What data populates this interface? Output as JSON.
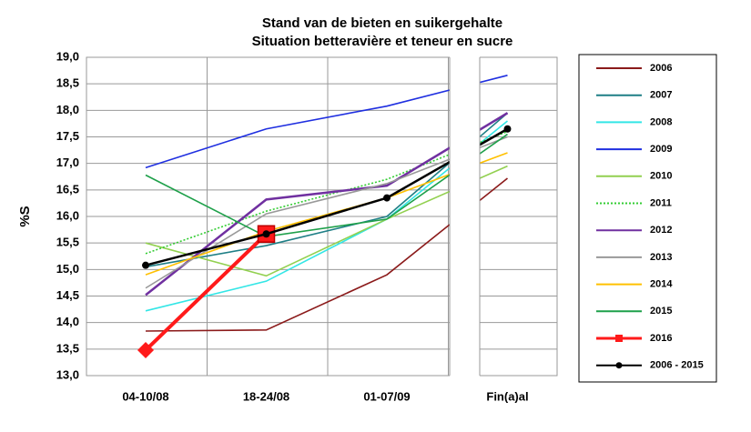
{
  "chart_data": {
    "type": "line",
    "title": "Stand van de bieten en suikergehalte",
    "subtitle": "Situation betteravière et teneur en sucre",
    "y_label": "%S",
    "categories": [
      "04-10/08",
      "18-24/08",
      "01-07/09",
      "Fin(a)al"
    ],
    "ylim": [
      13,
      19
    ],
    "yticks": [
      {
        "value": 13,
        "label": "13,0"
      },
      {
        "value": 13.5,
        "label": "13,5"
      },
      {
        "value": 14,
        "label": "14,0"
      },
      {
        "value": 14.5,
        "label": "14,5"
      },
      {
        "value": 15,
        "label": "15,0"
      },
      {
        "value": 15.5,
        "label": "15,5"
      },
      {
        "value": 16,
        "label": "16,0"
      },
      {
        "value": 16.5,
        "label": "16,5"
      },
      {
        "value": 17,
        "label": "17,0"
      },
      {
        "value": 17.5,
        "label": "17,5"
      },
      {
        "value": 18,
        "label": "18,0"
      },
      {
        "value": 18.5,
        "label": "18,5"
      },
      {
        "value": 19,
        "label": "19,0"
      }
    ],
    "grid": true,
    "legend": "right",
    "series": [
      {
        "name": "2006",
        "color": "#8b1a1a",
        "values": [
          13.84,
          13.86,
          14.9,
          16.72
        ]
      },
      {
        "name": "2007",
        "color": "#1f7f86",
        "values": [
          15.05,
          15.45,
          16.0,
          17.95
        ]
      },
      {
        "name": "2008",
        "color": "#33e6e6",
        "values": [
          14.22,
          14.78,
          15.95,
          17.8
        ]
      },
      {
        "name": "2009",
        "color": "#1f2fe0",
        "values": [
          16.92,
          17.65,
          18.08,
          18.66
        ]
      },
      {
        "name": "2010",
        "color": "#92d050",
        "values": [
          15.5,
          14.88,
          15.95,
          16.95
        ]
      },
      {
        "name": "2011",
        "color": "#33cc33",
        "dash": true,
        "values": [
          15.3,
          16.1,
          16.7,
          17.6
        ]
      },
      {
        "name": "2012",
        "color": "#7030a0",
        "values": [
          14.52,
          16.32,
          16.58,
          17.95
        ]
      },
      {
        "name": "2013",
        "color": "#999999",
        "values": [
          14.65,
          16.05,
          16.62,
          17.5
        ]
      },
      {
        "name": "2014",
        "color": "#ffc000",
        "values": [
          14.9,
          15.72,
          16.35,
          17.2
        ]
      },
      {
        "name": "2015",
        "color": "#1ea04a",
        "values": [
          16.78,
          15.62,
          15.95,
          17.55
        ]
      },
      {
        "name": "2016",
        "color": "#ff1a1a",
        "marker": "square",
        "values": [
          13.48,
          15.67,
          null,
          null
        ]
      },
      {
        "name": "2006 - 2015",
        "color": "#000000",
        "marker": "circle",
        "values": [
          15.08,
          15.67,
          16.35,
          17.65
        ]
      }
    ]
  }
}
